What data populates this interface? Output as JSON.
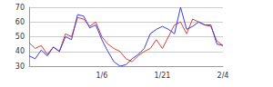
{
  "chart_data": {
    "type": "line",
    "categories": [
      null,
      null,
      null,
      null,
      null,
      null,
      null,
      null,
      null,
      null,
      null,
      null,
      "1/6",
      null,
      null,
      null,
      null,
      null,
      null,
      null,
      null,
      null,
      "1/21",
      null,
      null,
      null,
      null,
      null,
      null,
      null,
      null,
      null,
      "2/4"
    ],
    "series": [
      {
        "color": "#e03c3c",
        "values": [
          46,
          42,
          44,
          38,
          43,
          40,
          52,
          50,
          63,
          62,
          57,
          60,
          50,
          45,
          42,
          40,
          35,
          33,
          37,
          40,
          42,
          48,
          42,
          50,
          58,
          60,
          52,
          62,
          60,
          58,
          57,
          47,
          44
        ]
      },
      {
        "color": "#3c3ce0",
        "values": [
          37,
          35,
          41,
          37,
          43,
          40,
          50,
          48,
          65,
          64,
          56,
          58,
          48,
          40,
          33,
          30,
          31,
          35,
          38,
          42,
          52,
          55,
          57,
          55,
          52,
          70,
          55,
          57,
          60,
          58,
          58,
          45,
          44
        ]
      }
    ],
    "ylim": [
      30,
      70
    ],
    "yticks": [
      30,
      40,
      50,
      60,
      70
    ],
    "grid": true
  }
}
